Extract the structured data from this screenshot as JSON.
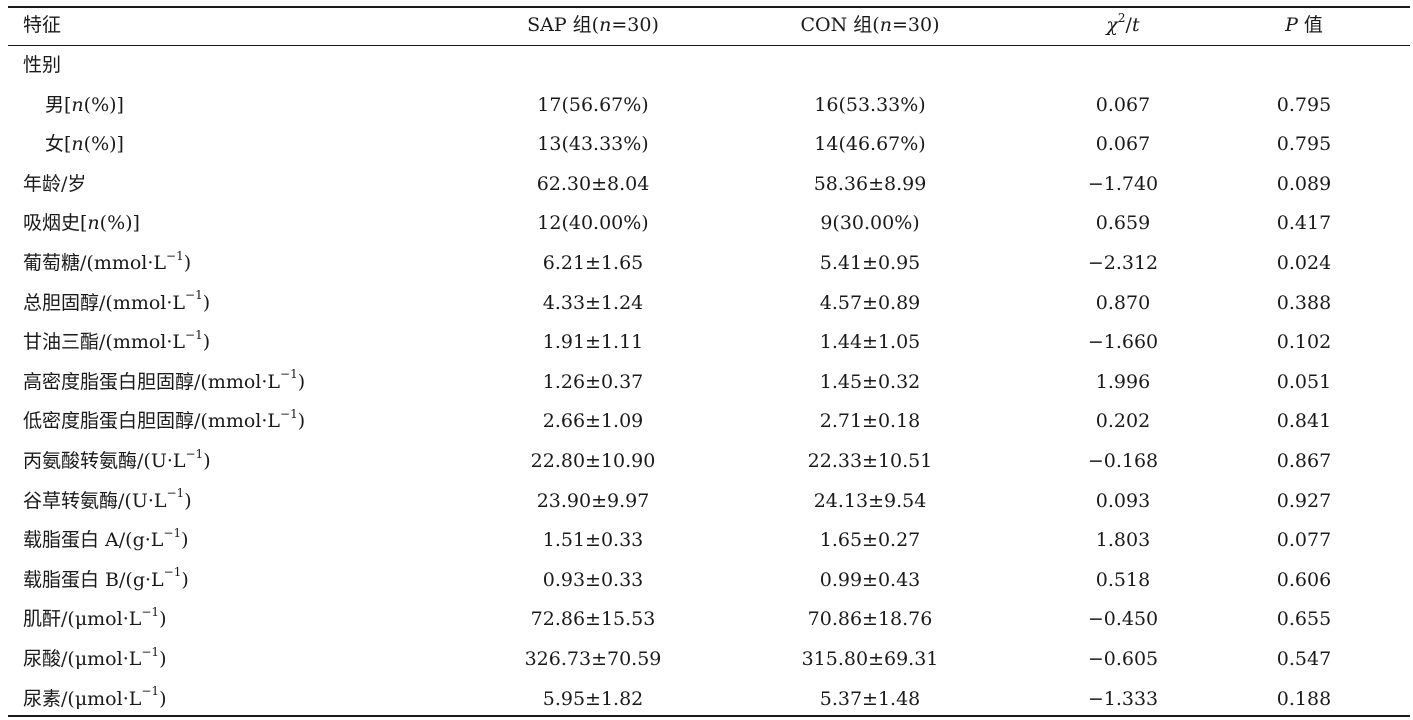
{
  "headers": {
    "feature": "特征",
    "sap": "SAP 组(n=30)",
    "sap_prefix": "SAP 组(",
    "sap_n": "n",
    "sap_suffix": "=30)",
    "con_prefix": "CON 组(",
    "con_n": "n",
    "con_suffix": "=30)",
    "chi_chi": "χ",
    "chi_sup": "2",
    "chi_sep": "/",
    "chi_t": "t",
    "p_p": "P",
    "p_suffix": " 值"
  },
  "rows": [
    {
      "label": "性别",
      "indent": false,
      "sap": "",
      "con": "",
      "stat": "",
      "p": ""
    },
    {
      "label": "男[n(%)]",
      "label_a": "男[",
      "label_n": "n",
      "label_b": "(%)]",
      "indent": true,
      "sap": "17(56.67%)",
      "con": "16(53.33%)",
      "stat": "0.067",
      "p": "0.795"
    },
    {
      "label": "女[n(%)]",
      "label_a": "女[",
      "label_n": "n",
      "label_b": "(%)]",
      "indent": true,
      "sap": "13(43.33%)",
      "con": "14(46.67%)",
      "stat": "0.067",
      "p": "0.795"
    },
    {
      "label": "年龄/岁",
      "indent": false,
      "sap": "62.30±8.04",
      "con": "58.36±8.99",
      "stat": "−1.740",
      "p": "0.089"
    },
    {
      "label": "吸烟史[n(%)]",
      "label_a": "吸烟史[",
      "label_n": "n",
      "label_b": "(%)]",
      "indent": false,
      "sap": "12(40.00%)",
      "con": "9(30.00%)",
      "stat": "0.659",
      "p": "0.417"
    },
    {
      "label": "葡萄糖/(mmol·L−1)",
      "label_a": "葡萄糖/(mmol·L",
      "label_sup": "−1",
      "label_b": ")",
      "indent": false,
      "sap": "6.21±1.65",
      "con": "5.41±0.95",
      "stat": "−2.312",
      "p": "0.024"
    },
    {
      "label": "总胆固醇/(mmol·L−1)",
      "label_a": "总胆固醇/(mmol·L",
      "label_sup": "−1",
      "label_b": ")",
      "indent": false,
      "sap": "4.33±1.24",
      "con": "4.57±0.89",
      "stat": "0.870",
      "p": "0.388"
    },
    {
      "label": "甘油三酯/(mmol·L−1)",
      "label_a": "甘油三酯/(mmol·L",
      "label_sup": "−1",
      "label_b": ")",
      "indent": false,
      "sap": "1.91±1.11",
      "con": "1.44±1.05",
      "stat": "−1.660",
      "p": "0.102"
    },
    {
      "label": "高密度脂蛋白胆固醇/(mmol·L−1)",
      "label_a": "高密度脂蛋白胆固醇/(mmol·L",
      "label_sup": "−1",
      "label_b": ")",
      "indent": false,
      "sap": "1.26±0.37",
      "con": "1.45±0.32",
      "stat": "1.996",
      "p": "0.051"
    },
    {
      "label": "低密度脂蛋白胆固醇/(mmol·L−1)",
      "label_a": "低密度脂蛋白胆固醇/(mmol·L",
      "label_sup": "−1",
      "label_b": ")",
      "indent": false,
      "sap": "2.66±1.09",
      "con": "2.71±0.18",
      "stat": "0.202",
      "p": "0.841"
    },
    {
      "label": "丙氨酸转氨酶/(U·L−1)",
      "label_a": "丙氨酸转氨酶/(U·L",
      "label_sup": "−1",
      "label_b": ")",
      "indent": false,
      "sap": "22.80±10.90",
      "con": "22.33±10.51",
      "stat": "−0.168",
      "p": "0.867"
    },
    {
      "label": "谷草转氨酶/(U·L−1)",
      "label_a": "谷草转氨酶/(U·L",
      "label_sup": "−1",
      "label_b": ")",
      "indent": false,
      "sap": "23.90±9.97",
      "con": "24.13±9.54",
      "stat": "0.093",
      "p": "0.927"
    },
    {
      "label": "载脂蛋白 A/(g·L−1)",
      "label_a": "载脂蛋白 A/(g·L",
      "label_sup": "−1",
      "label_b": ")",
      "indent": false,
      "sap": "1.51±0.33",
      "con": "1.65±0.27",
      "stat": "1.803",
      "p": "0.077"
    },
    {
      "label": "载脂蛋白 B/(g·L−1)",
      "label_a": "载脂蛋白 B/(g·L",
      "label_sup": "−1",
      "label_b": ")",
      "indent": false,
      "sap": "0.93±0.33",
      "con": "0.99±0.43",
      "stat": "0.518",
      "p": "0.606"
    },
    {
      "label": "肌酐/(μmol·L−1)",
      "label_a": "肌酐/(μmol·L",
      "label_sup": "−1",
      "label_b": ")",
      "indent": false,
      "sap": "72.86±15.53",
      "con": "70.86±18.76",
      "stat": "−0.450",
      "p": "0.655"
    },
    {
      "label": "尿酸/(μmol·L−1)",
      "label_a": "尿酸/(μmol·L",
      "label_sup": "−1",
      "label_b": ")",
      "indent": false,
      "sap": "326.73±70.59",
      "con": "315.80±69.31",
      "stat": "−0.605",
      "p": "0.547"
    },
    {
      "label": "尿素/(μmol·L−1)",
      "label_a": "尿素/(μmol·L",
      "label_sup": "−1",
      "label_b": ")",
      "indent": false,
      "sap": "5.95±1.82",
      "con": "5.37±1.48",
      "stat": "−1.333",
      "p": "0.188"
    }
  ]
}
